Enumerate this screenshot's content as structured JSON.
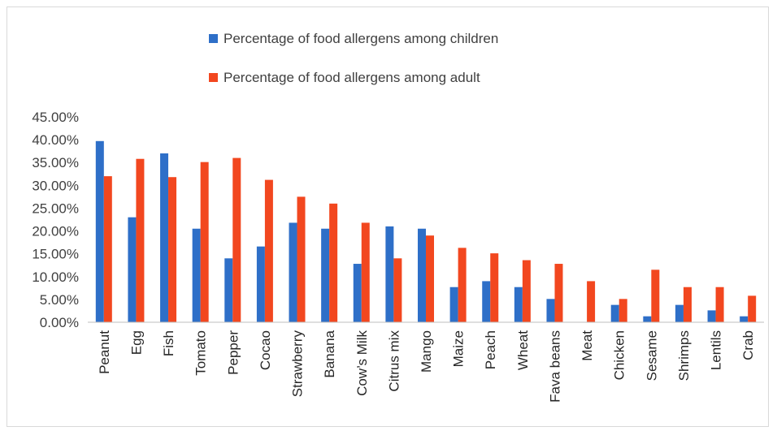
{
  "colors": {
    "children": "#2E6FC8",
    "adult": "#F2471F",
    "axis": "#bfbfbf"
  },
  "legend": {
    "children": "Percentage of food allergens among children",
    "adult": "Percentage of food allergens among adult"
  },
  "chart_data": {
    "type": "bar",
    "title": "",
    "xlabel": "",
    "ylabel": "",
    "ylim": [
      0,
      0.45
    ],
    "grid": false,
    "legend_position": "top-center",
    "y_ticks": [
      "0.00%",
      "5.00%",
      "10.00%",
      "15.00%",
      "20.00%",
      "25.00%",
      "30.00%",
      "35.00%",
      "40.00%",
      "45.00%"
    ],
    "categories": [
      "Peanut",
      "Egg",
      "Fish",
      "Tomato",
      "Pepper",
      "Cocao",
      "Strawberry",
      "Banana",
      "Cow’s Milk",
      "Citrus mix",
      "Mango",
      "Maize",
      "Peach",
      "Wheat",
      "Fava beans",
      "Meat",
      "Chicken",
      "Sesame",
      "Shrimps",
      "Lentils",
      "Crab"
    ],
    "series": [
      {
        "name": "Percentage of food allergens among children",
        "values": [
          0.397,
          0.23,
          0.37,
          0.205,
          0.14,
          0.166,
          0.218,
          0.205,
          0.128,
          0.21,
          0.205,
          0.077,
          0.09,
          0.077,
          0.051,
          0.0,
          0.038,
          0.013,
          0.038,
          0.026,
          0.013
        ]
      },
      {
        "name": "Percentage of food allergens among adult",
        "values": [
          0.32,
          0.358,
          0.318,
          0.351,
          0.36,
          0.312,
          0.275,
          0.26,
          0.218,
          0.14,
          0.19,
          0.163,
          0.151,
          0.136,
          0.128,
          0.09,
          0.051,
          0.115,
          0.077,
          0.077,
          0.058
        ]
      }
    ]
  }
}
